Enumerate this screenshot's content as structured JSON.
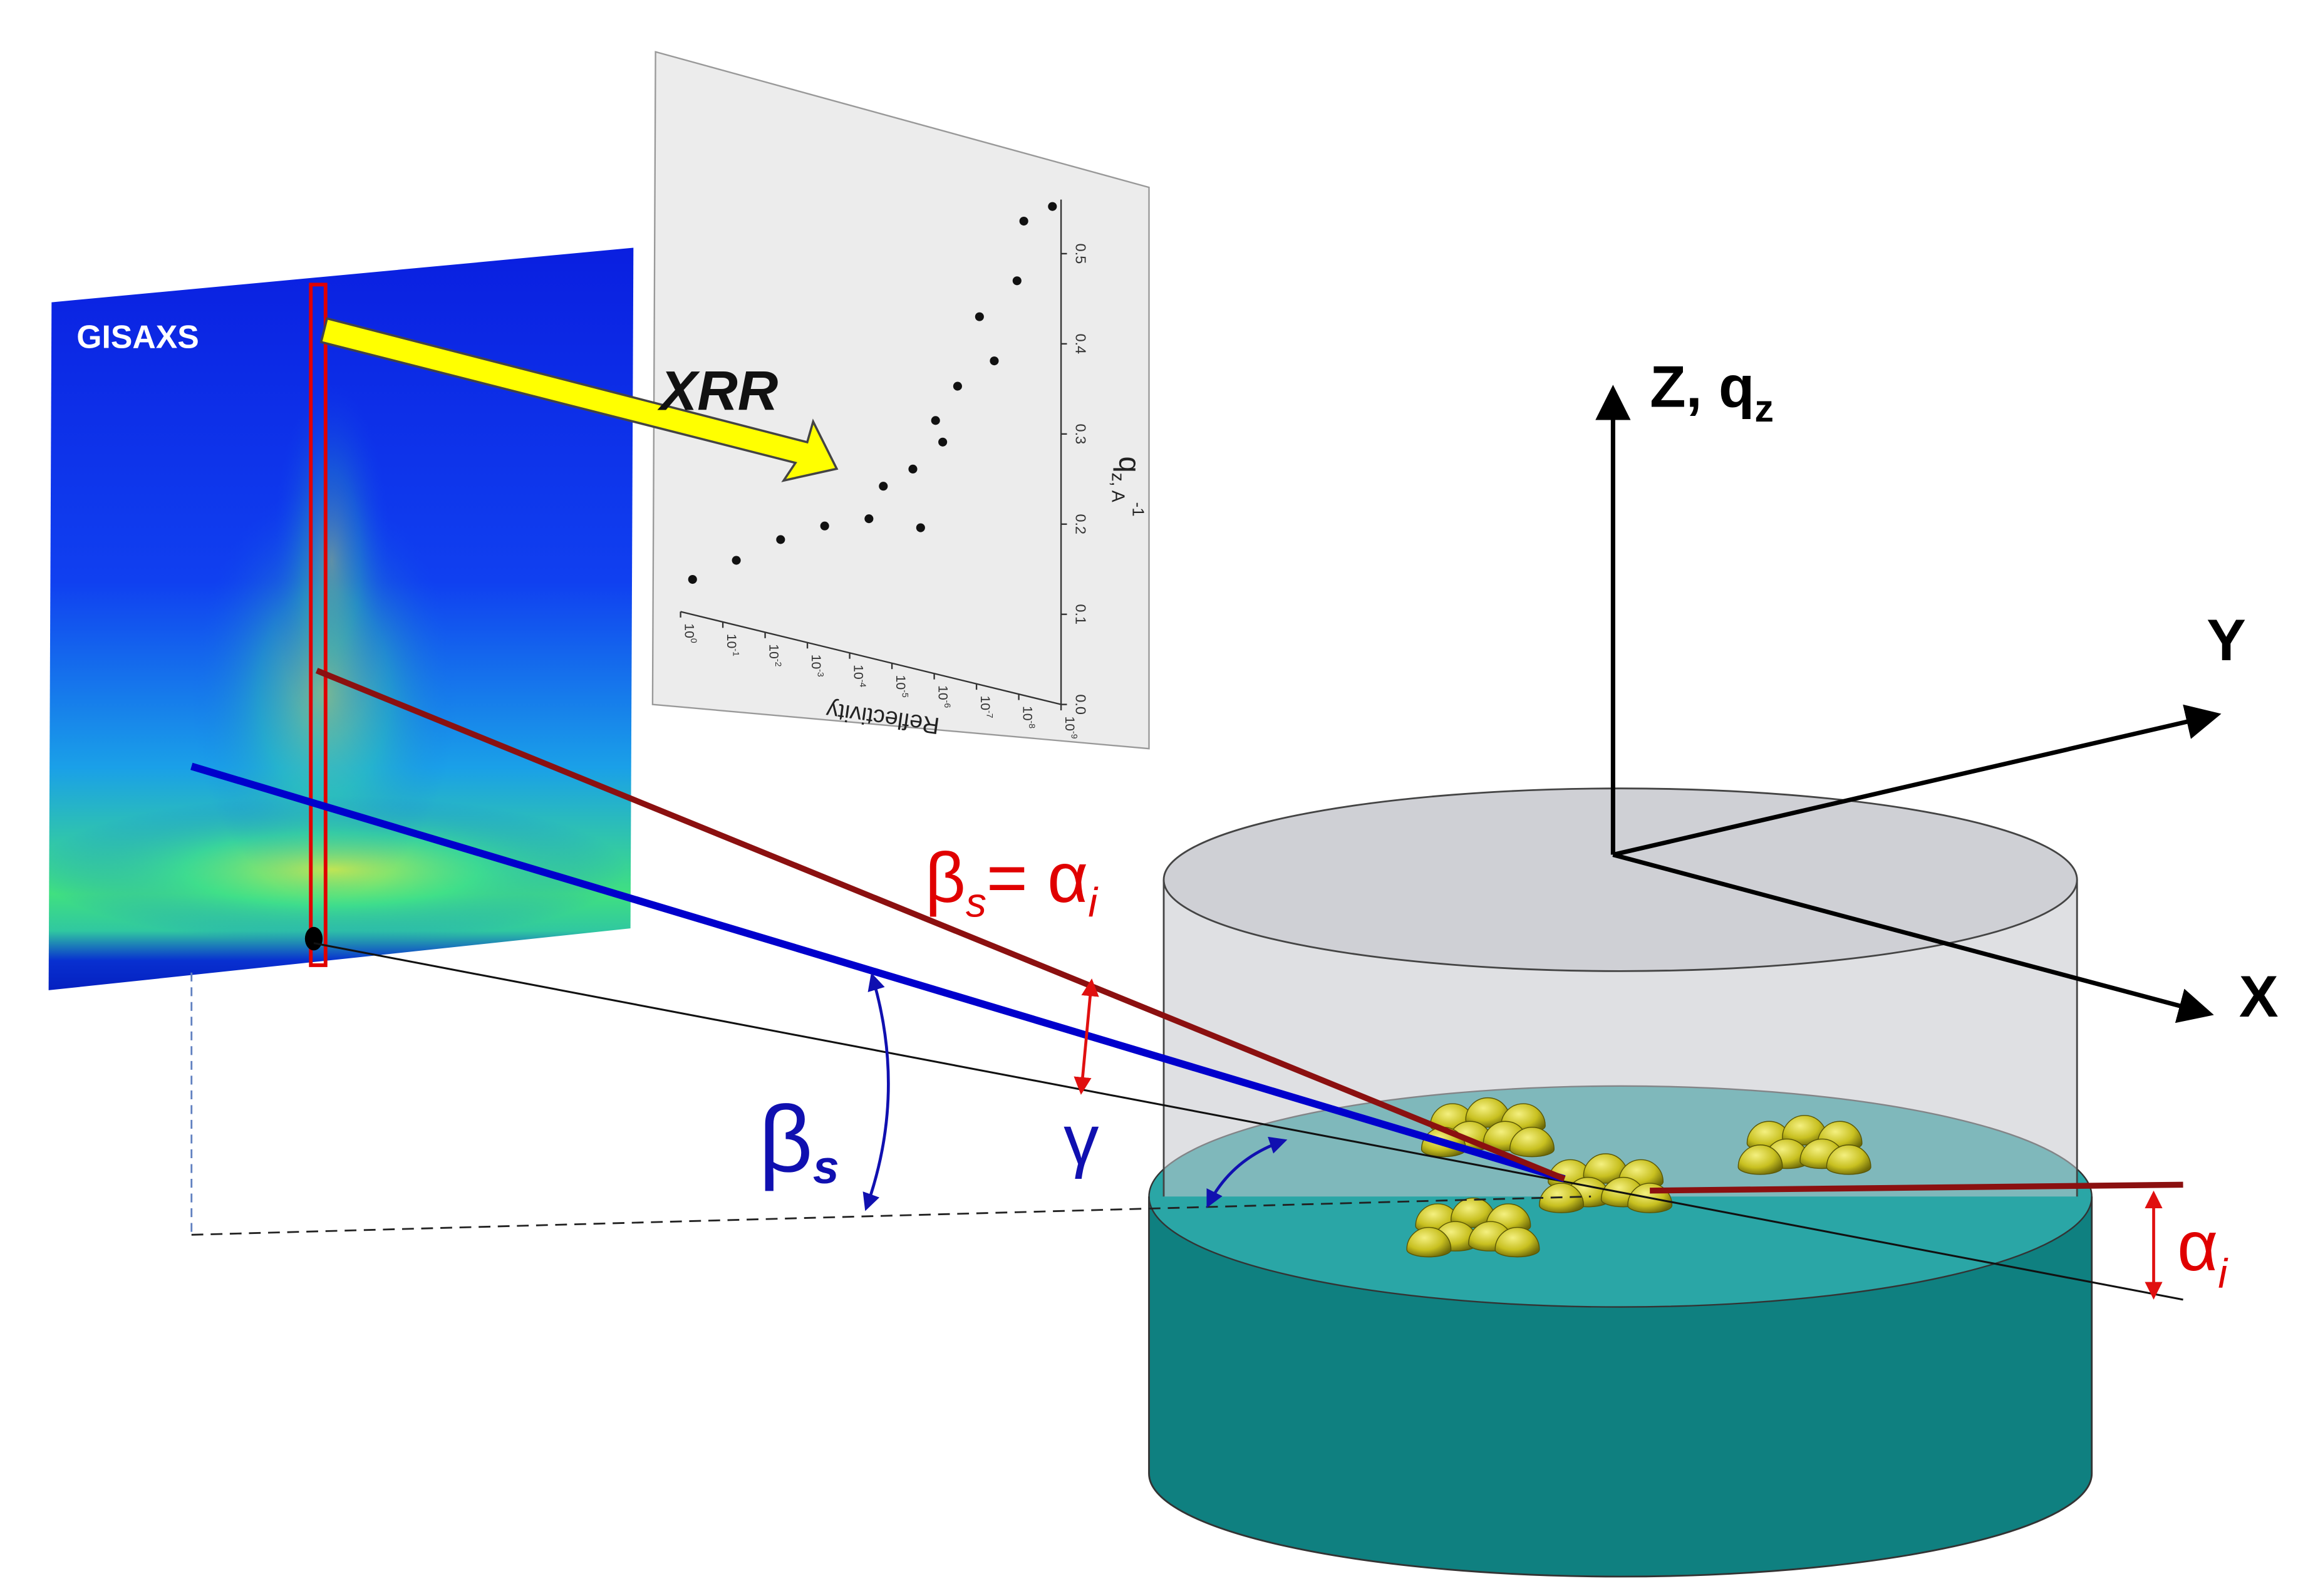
{
  "detector": {
    "label": "GISAXS"
  },
  "transfer": {
    "label": "XRR"
  },
  "inset_plot": {
    "x_label": {
      "main": "q",
      "sub": "z, A",
      "sup": "-1"
    },
    "y_label": "Reflectivity",
    "log_scale": true,
    "xlim": [
      0,
      0.56
    ],
    "xticks": [
      {
        "value": 0,
        "label": "0.0"
      },
      0.1,
      0.2,
      0.3,
      0.4,
      0.5
    ],
    "ylim": [
      1,
      1e-09
    ],
    "yticks": [
      {
        "value": 1,
        "label": "10",
        "power": "0"
      },
      {
        "value": 0.1,
        "label": "10",
        "power": "-1"
      },
      {
        "value": 0.01,
        "label": "10",
        "power": "-2"
      },
      {
        "value": 0.001,
        "label": "10",
        "power": "-3"
      },
      {
        "value": 0.0001,
        "label": "10",
        "power": "-4"
      },
      {
        "value": 1e-05,
        "label": "10",
        "power": "-5"
      },
      {
        "value": 1e-06,
        "label": "10",
        "power": "-6"
      },
      {
        "value": 1e-07,
        "label": "10",
        "power": "-7"
      },
      {
        "value": 1e-08,
        "label": "10",
        "power": "-8"
      },
      {
        "value": 1e-09,
        "label": "10",
        "power": "-9"
      }
    ],
    "x": [
      0.039,
      0.072,
      0.107,
      0.134,
      0.154,
      0.158,
      0.194,
      0.221,
      0.259,
      0.281,
      0.325,
      0.363,
      0.408,
      0.458,
      0.526,
      0.55
    ],
    "values": [
      0.52,
      0.048,
      0.0043,
      0.00039,
      3.5e-05,
      2.1e-06,
      1.6e-05,
      3.2e-06,
      6.3e-07,
      9.3e-07,
      2.8e-07,
      3.8e-08,
      8.5e-08,
      1.1e-08,
      7.6e-09,
      1.6e-09
    ],
    "color": "#111111"
  },
  "axes": {
    "z": {
      "main": "Z, q",
      "sub": "z"
    },
    "y": "Y",
    "x": "X"
  },
  "angles": {
    "specular": {
      "a": "β",
      "a_sub": "s",
      "b": "= α",
      "b_sub": "i"
    },
    "beta_s": {
      "main": "β",
      "sub": "s"
    },
    "gamma": "γ",
    "alpha_i": {
      "main": "α",
      "sub": "i"
    }
  }
}
